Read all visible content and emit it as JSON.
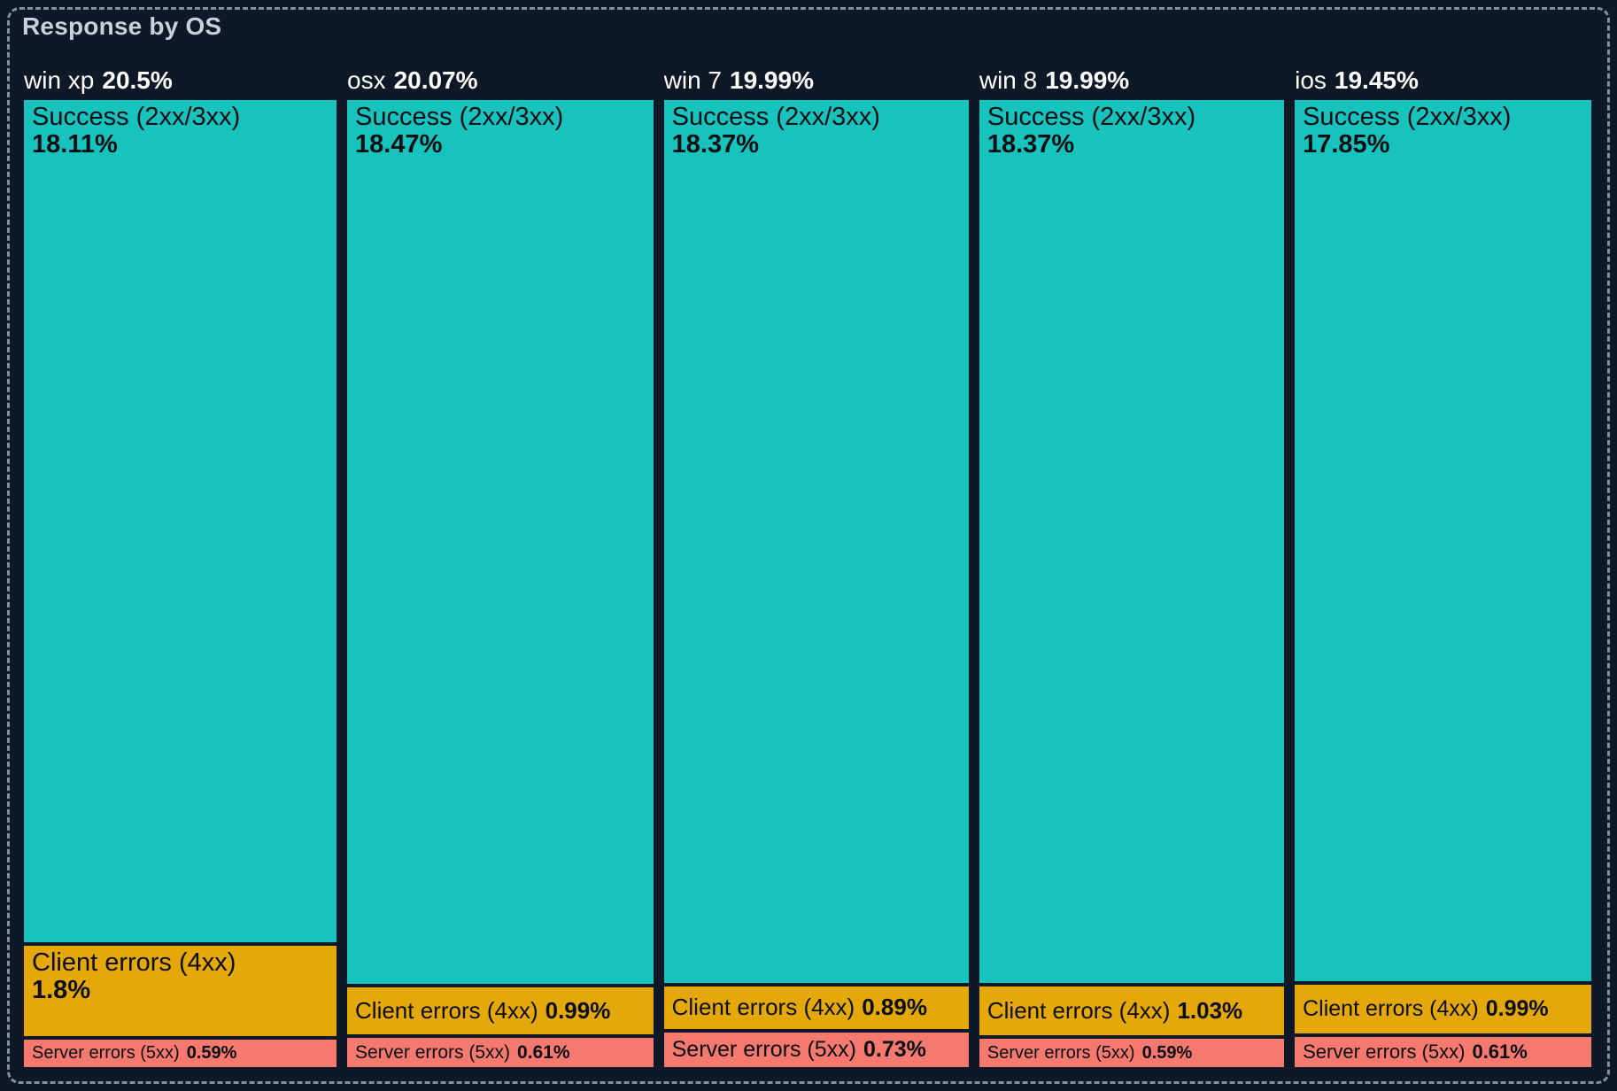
{
  "panel": {
    "title": "Response by OS"
  },
  "colors": {
    "background": "#0F1826",
    "border": "#8290A6",
    "title_text": "#C9D0DB",
    "header_text": "#FFFFFF",
    "block_text": "#0B0F14",
    "success": "#18C3BD",
    "client": "#E5A80A",
    "server": "#F5796F"
  },
  "chart_data": {
    "type": "treemap",
    "title": "Response by OS",
    "unit": "%",
    "orientation": "columns-by-os, stacked-by-status",
    "legend_position": "none",
    "categories": [
      "Success (2xx/3xx)",
      "Client errors (4xx)",
      "Server errors (5xx)"
    ],
    "series": [
      {
        "name": "win xp",
        "total_value": 20.5,
        "total_label": "20.5%",
        "blocks": [
          {
            "category": "success",
            "label": "Success (2xx/3xx)",
            "value": 18.11,
            "pct_label": "18.11%"
          },
          {
            "category": "client",
            "label": "Client errors (4xx)",
            "value": 1.8,
            "pct_label": "1.8%"
          },
          {
            "category": "server",
            "label": "Server errors (5xx)",
            "value": 0.59,
            "pct_label": "0.59%"
          }
        ]
      },
      {
        "name": "osx",
        "total_value": 20.07,
        "total_label": "20.07%",
        "blocks": [
          {
            "category": "success",
            "label": "Success (2xx/3xx)",
            "value": 18.47,
            "pct_label": "18.47%"
          },
          {
            "category": "client",
            "label": "Client errors (4xx)",
            "value": 0.99,
            "pct_label": "0.99%"
          },
          {
            "category": "server",
            "label": "Server errors (5xx)",
            "value": 0.61,
            "pct_label": "0.61%"
          }
        ]
      },
      {
        "name": "win 7",
        "total_value": 19.99,
        "total_label": "19.99%",
        "blocks": [
          {
            "category": "success",
            "label": "Success (2xx/3xx)",
            "value": 18.37,
            "pct_label": "18.37%"
          },
          {
            "category": "client",
            "label": "Client errors (4xx)",
            "value": 0.89,
            "pct_label": "0.89%"
          },
          {
            "category": "server",
            "label": "Server errors (5xx)",
            "value": 0.73,
            "pct_label": "0.73%"
          }
        ]
      },
      {
        "name": "win 8",
        "total_value": 19.99,
        "total_label": "19.99%",
        "blocks": [
          {
            "category": "success",
            "label": "Success (2xx/3xx)",
            "value": 18.37,
            "pct_label": "18.37%"
          },
          {
            "category": "client",
            "label": "Client errors (4xx)",
            "value": 1.03,
            "pct_label": "1.03%"
          },
          {
            "category": "server",
            "label": "Server errors (5xx)",
            "value": 0.59,
            "pct_label": "0.59%"
          }
        ]
      },
      {
        "name": "ios",
        "total_value": 19.45,
        "total_label": "19.45%",
        "blocks": [
          {
            "category": "success",
            "label": "Success (2xx/3xx)",
            "value": 17.85,
            "pct_label": "17.85%"
          },
          {
            "category": "client",
            "label": "Client errors (4xx)",
            "value": 0.99,
            "pct_label": "0.99%"
          },
          {
            "category": "server",
            "label": "Server errors (5xx)",
            "value": 0.61,
            "pct_label": "0.61%"
          }
        ]
      }
    ]
  }
}
